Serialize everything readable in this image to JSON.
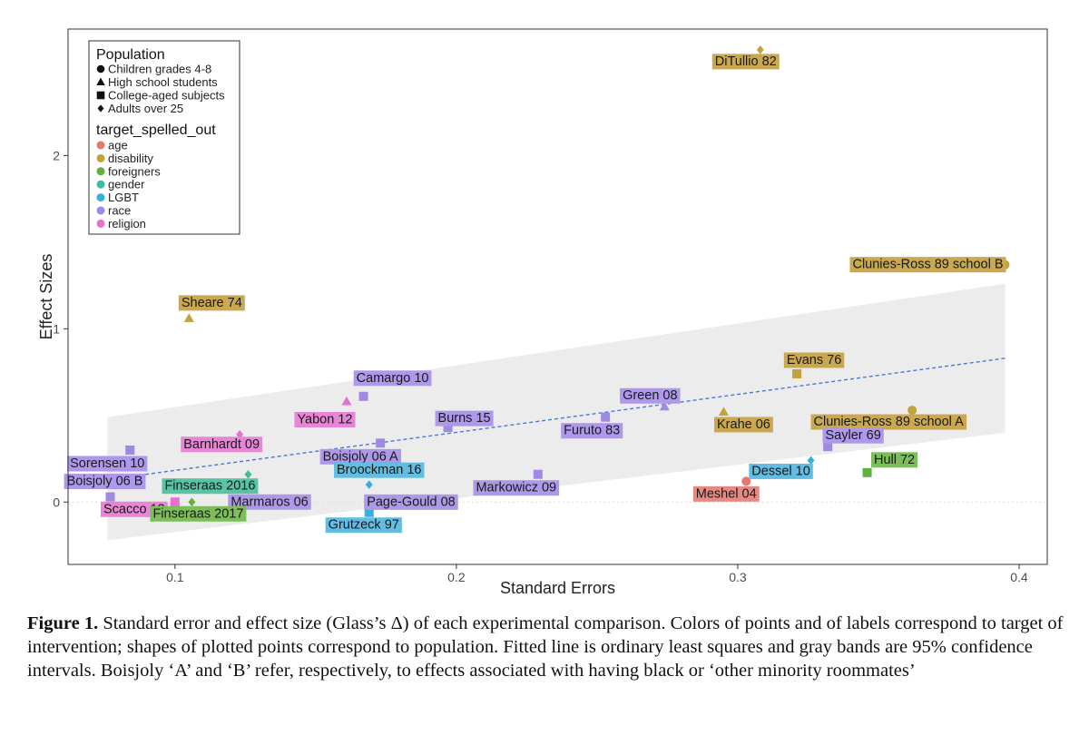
{
  "caption": {
    "label": "Figure 1.",
    "text": "Standard error and effect size (Glass’s Δ) of each experimental comparison. Colors of points and of labels correspond to target of intervention; shapes of plotted points correspond to population. Fitted line is ordinary least squares and gray bands are 95% confidence intervals. Boisjoly ‘A’ and ‘B’ refer, respectively, to effects associated with having black or ‘other minority roommates’"
  },
  "chart_data": {
    "type": "scatter",
    "xlabel": "Standard Errors",
    "ylabel": "Effect Sizes",
    "xlim": [
      0.062,
      0.41
    ],
    "ylim": [
      -0.36,
      2.73
    ],
    "xticks": [
      0.1,
      0.2,
      0.3,
      0.4
    ],
    "xtick_labels": [
      "0.1",
      "0.2",
      "0.3",
      "0.4"
    ],
    "yticks": [
      0,
      1,
      2
    ],
    "ytick_labels": [
      "0",
      "1",
      "2"
    ],
    "grid": false,
    "legend": {
      "placement": "top-left",
      "shape_title": "Population",
      "shape_entries": [
        {
          "shape": "circle",
          "label": "Children grades 4-8"
        },
        {
          "shape": "triangle",
          "label": "High school students"
        },
        {
          "shape": "square",
          "label": "College-aged subjects"
        },
        {
          "shape": "diamond",
          "label": "Adults over 25"
        }
      ],
      "color_title": "target_spelled_out",
      "color_entries": [
        {
          "key": "age",
          "label": "age"
        },
        {
          "key": "disability",
          "label": "disability"
        },
        {
          "key": "foreigners",
          "label": "foreigners"
        },
        {
          "key": "gender",
          "label": "gender"
        },
        {
          "key": "LGBT",
          "label": "LGBT"
        },
        {
          "key": "race",
          "label": "race"
        },
        {
          "key": "religion",
          "label": "religion"
        }
      ]
    },
    "colors": {
      "age": "#e8776f",
      "disability": "#c2a23a",
      "foreigners": "#62b03e",
      "gender": "#3fbc9c",
      "LGBT": "#38b0dd",
      "race": "#a088e4",
      "religion": "#e470cf"
    },
    "label_bg": {
      "age": "#e58a83",
      "disability": "#c9a84f",
      "foreigners": "#7cbf5a",
      "gender": "#57c4a6",
      "LGBT": "#62bde3",
      "race": "#ad98ea",
      "religion": "#e885d6"
    },
    "fit_line": {
      "x": [
        0.076,
        0.395
      ],
      "y": [
        0.13,
        0.83
      ],
      "style": "dashed",
      "color": "#4a78d6"
    },
    "confidence_band": {
      "x": [
        0.076,
        0.395
      ],
      "upper": [
        0.49,
        1.26
      ],
      "lower": [
        -0.22,
        0.4
      ],
      "color": "#ececec"
    },
    "points": [
      {
        "label": "DiTullio 82",
        "x": 0.308,
        "y": 2.61,
        "target": "disability",
        "population": "Adults over 25"
      },
      {
        "label": "Clunies-Ross 89 school B",
        "x": 0.395,
        "y": 1.37,
        "target": "disability",
        "population": "Children grades 4-8"
      },
      {
        "label": "Sheare 74",
        "x": 0.105,
        "y": 1.06,
        "target": "disability",
        "population": "High school students"
      },
      {
        "label": "Evans 76",
        "x": 0.321,
        "y": 0.74,
        "target": "disability",
        "population": "College-aged subjects"
      },
      {
        "label": "Camargo 10",
        "x": 0.167,
        "y": 0.61,
        "target": "race",
        "population": "College-aged subjects"
      },
      {
        "label": "Yabon 12",
        "x": 0.161,
        "y": 0.58,
        "target": "religion",
        "population": "High school students"
      },
      {
        "label": "Green 08",
        "x": 0.274,
        "y": 0.55,
        "target": "race",
        "population": "High school students"
      },
      {
        "label": "Krahe 06",
        "x": 0.295,
        "y": 0.52,
        "target": "disability",
        "population": "High school students"
      },
      {
        "label": "Clunies-Ross 89 school A",
        "x": 0.362,
        "y": 0.53,
        "target": "disability",
        "population": "Children grades 4-8"
      },
      {
        "label": "Furuto 83",
        "x": 0.253,
        "y": 0.49,
        "target": "race",
        "population": "College-aged subjects"
      },
      {
        "label": "Burns 15",
        "x": 0.197,
        "y": 0.43,
        "target": "race",
        "population": "College-aged subjects"
      },
      {
        "label": "Barnhardt 09",
        "x": 0.123,
        "y": 0.39,
        "target": "religion",
        "population": "Adults over 25"
      },
      {
        "label": "Boisjoly 06 A",
        "x": 0.173,
        "y": 0.34,
        "target": "race",
        "population": "College-aged subjects"
      },
      {
        "label": "Sorensen 10",
        "x": 0.084,
        "y": 0.3,
        "target": "race",
        "population": "College-aged subjects"
      },
      {
        "label": "Sayler 69",
        "x": 0.332,
        "y": 0.32,
        "target": "race",
        "population": "College-aged subjects"
      },
      {
        "label": "Dessel 10",
        "x": 0.326,
        "y": 0.24,
        "target": "LGBT",
        "population": "Adults over 25"
      },
      {
        "label": "Hull 72",
        "x": 0.346,
        "y": 0.17,
        "target": "foreigners",
        "population": "College-aged subjects"
      },
      {
        "label": "Finseraas 2016",
        "x": 0.126,
        "y": 0.16,
        "target": "gender",
        "population": "Adults over 25"
      },
      {
        "label": "Broockman 16",
        "x": 0.169,
        "y": 0.1,
        "target": "LGBT",
        "population": "Adults over 25"
      },
      {
        "label": "Markowicz 09",
        "x": 0.229,
        "y": 0.16,
        "target": "race",
        "population": "College-aged subjects"
      },
      {
        "label": "Meshel 04",
        "x": 0.303,
        "y": 0.12,
        "target": "age",
        "population": "Children grades 4-8"
      },
      {
        "label": "Boisjoly 06 B",
        "x": 0.077,
        "y": 0.03,
        "target": "race",
        "population": "College-aged subjects"
      },
      {
        "label": "Marmaros 06",
        "x": 0.122,
        "y": 0.0,
        "target": "race",
        "population": "College-aged subjects"
      },
      {
        "label": "Scacco 18",
        "x": 0.1,
        "y": 0.0,
        "target": "religion",
        "population": "College-aged subjects"
      },
      {
        "label": "Finseraas 2017",
        "x": 0.106,
        "y": 0.0,
        "target": "foreigners",
        "population": "Adults over 25"
      },
      {
        "label": "Page-Gould 08",
        "x": 0.171,
        "y": 0.01,
        "target": "race",
        "population": "College-aged subjects"
      },
      {
        "label": "Grutzeck 97",
        "x": 0.169,
        "y": -0.06,
        "target": "LGBT",
        "population": "College-aged subjects"
      }
    ]
  }
}
